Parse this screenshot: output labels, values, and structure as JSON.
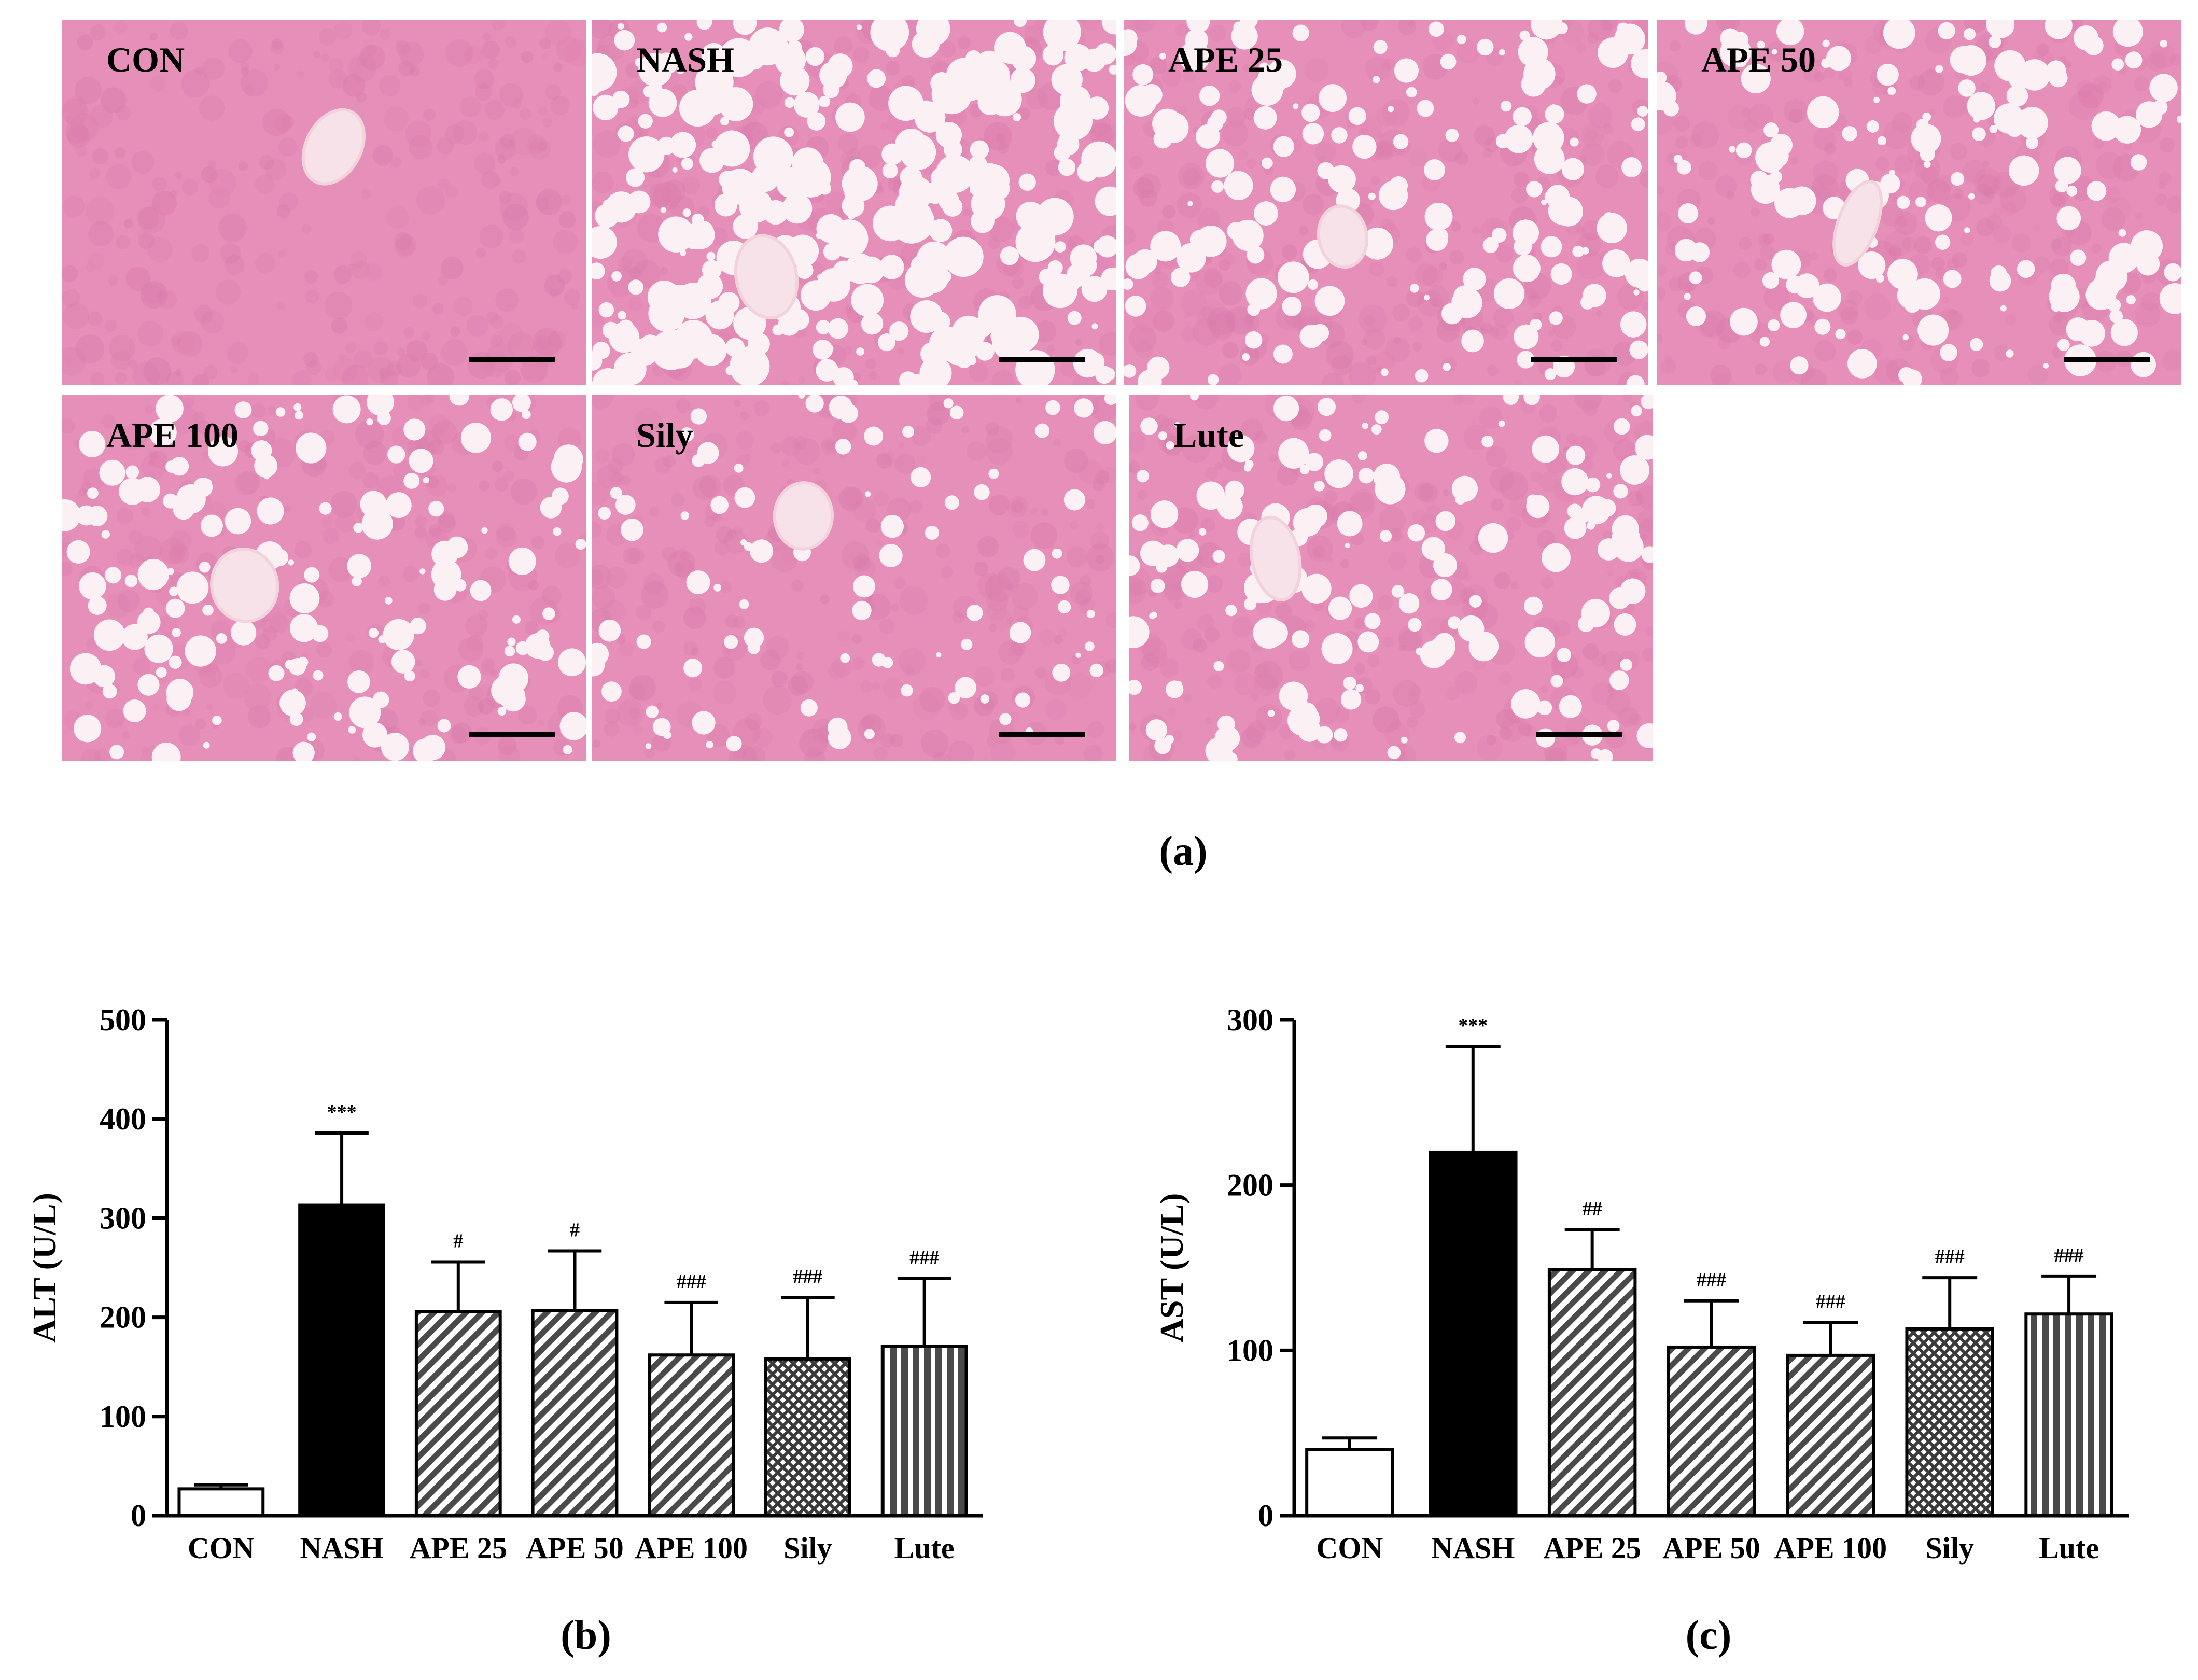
{
  "figure": {
    "panel_a_label": "(a)",
    "panel_b_label": "(b)",
    "panel_c_label": "(c)"
  },
  "micrographs": [
    {
      "label": "CON",
      "droplets": "none"
    },
    {
      "label": "NASH",
      "droplets": "many large"
    },
    {
      "label": "APE 25",
      "droplets": "moderate"
    },
    {
      "label": "APE 50",
      "droplets": "moderate"
    },
    {
      "label": "APE 100",
      "droplets": "moderate"
    },
    {
      "label": "Sily",
      "droplets": "few small"
    },
    {
      "label": "Lute",
      "droplets": "moderate"
    }
  ],
  "colors": {
    "tissue": "#e58fb9",
    "tissue_dark": "#d97aa9",
    "droplet": "#fbf1f4",
    "bar_black": "#000000",
    "bar_pattern": "#4a4a4a"
  },
  "chart_data": [
    {
      "type": "bar",
      "ylabel": "ALT (U/L)",
      "ylim": [
        0,
        500
      ],
      "yticks": [
        0,
        100,
        200,
        300,
        400,
        500
      ],
      "categories": [
        "CON",
        "NASH",
        "APE 25",
        "APE 50",
        "APE 100",
        "Sily",
        "Lute"
      ],
      "values": [
        27,
        313,
        206,
        207,
        162,
        158,
        171
      ],
      "errors": [
        4,
        73,
        50,
        60,
        53,
        62,
        68
      ],
      "significance": [
        "",
        "***",
        "#",
        "#",
        "###",
        "###",
        "###"
      ],
      "fills": [
        "white",
        "black",
        "diag",
        "diag",
        "diag",
        "cross",
        "vertical"
      ]
    },
    {
      "type": "bar",
      "ylabel": "AST (U/L)",
      "ylim": [
        0,
        300
      ],
      "yticks": [
        0,
        100,
        200,
        300
      ],
      "categories": [
        "CON",
        "NASH",
        "APE 25",
        "APE 50",
        "APE 100",
        "Sily",
        "Lute"
      ],
      "values": [
        40,
        220,
        149,
        102,
        97,
        113,
        122
      ],
      "errors": [
        7,
        64,
        24,
        28,
        20,
        31,
        23
      ],
      "significance": [
        "",
        "***",
        "##",
        "###",
        "###",
        "###",
        "###"
      ],
      "fills": [
        "white",
        "black",
        "diag",
        "diag",
        "diag",
        "cross",
        "vertical"
      ]
    }
  ]
}
